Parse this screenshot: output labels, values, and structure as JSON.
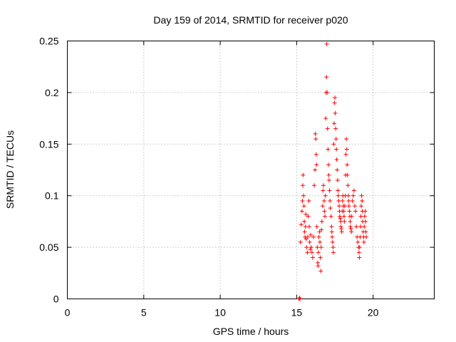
{
  "chart_data": {
    "type": "scatter",
    "title": "Day 159 of 2014, SRMTID for receiver p020",
    "xlabel": "GPS time / hours",
    "ylabel": "SRMTID / TECUs",
    "xlim": [
      0,
      24
    ],
    "ylim": [
      0,
      0.25
    ],
    "xticks": [
      0,
      5,
      10,
      15,
      20
    ],
    "yticks": [
      0,
      0.05,
      0.1,
      0.15,
      0.2,
      0.25
    ],
    "xtick_labels": [
      "0",
      "5",
      "10",
      "15",
      "20"
    ],
    "ytick_labels": [
      "0",
      "0.05",
      "0.1",
      "0.15",
      "0.2",
      "0.25"
    ],
    "grid": true,
    "marker": "+",
    "color": "#ff0000",
    "series": [
      {
        "name": "SRMTID",
        "points": [
          [
            15.15,
            0.0
          ],
          [
            15.2,
            0.001
          ],
          [
            15.22,
            0.0
          ],
          [
            15.25,
            0.055
          ],
          [
            15.3,
            0.072
          ],
          [
            15.35,
            0.085
          ],
          [
            15.38,
            0.095
          ],
          [
            15.4,
            0.11
          ],
          [
            15.42,
            0.12
          ],
          [
            15.45,
            0.1
          ],
          [
            15.48,
            0.09
          ],
          [
            15.5,
            0.075
          ],
          [
            15.52,
            0.065
          ],
          [
            15.55,
            0.06
          ],
          [
            15.58,
            0.07
          ],
          [
            15.6,
            0.082
          ],
          [
            15.62,
            0.058
          ],
          [
            15.65,
            0.05
          ],
          [
            15.7,
            0.045
          ],
          [
            15.72,
            0.06
          ],
          [
            15.75,
            0.08
          ],
          [
            15.8,
            0.095
          ],
          [
            15.82,
            0.07
          ],
          [
            15.85,
            0.055
          ],
          [
            15.9,
            0.048
          ],
          [
            15.92,
            0.062
          ],
          [
            15.95,
            0.05
          ],
          [
            16.0,
            0.045
          ],
          [
            16.05,
            0.04
          ],
          [
            16.1,
            0.06
          ],
          [
            16.15,
            0.11
          ],
          [
            16.2,
            0.125
          ],
          [
            16.22,
            0.16
          ],
          [
            16.25,
            0.155
          ],
          [
            16.28,
            0.14
          ],
          [
            16.3,
            0.13
          ],
          [
            16.32,
            0.07
          ],
          [
            16.35,
            0.05
          ],
          [
            16.38,
            0.035
          ],
          [
            16.4,
            0.032
          ],
          [
            16.42,
            0.045
          ],
          [
            16.45,
            0.06
          ],
          [
            16.5,
            0.065
          ],
          [
            16.52,
            0.055
          ],
          [
            16.55,
            0.04
          ],
          [
            16.58,
            0.027
          ],
          [
            16.6,
            0.05
          ],
          [
            16.62,
            0.067
          ],
          [
            16.65,
            0.075
          ],
          [
            16.7,
            0.09
          ],
          [
            16.72,
            0.105
          ],
          [
            16.75,
            0.11
          ],
          [
            16.8,
            0.095
          ],
          [
            16.82,
            0.085
          ],
          [
            16.85,
            0.08
          ],
          [
            16.88,
            0.1
          ],
          [
            16.9,
            0.175
          ],
          [
            16.92,
            0.2
          ],
          [
            16.95,
            0.215
          ],
          [
            16.97,
            0.247
          ],
          [
            17.0,
            0.2
          ],
          [
            17.02,
            0.165
          ],
          [
            17.05,
            0.145
          ],
          [
            17.08,
            0.13
          ],
          [
            17.1,
            0.12
          ],
          [
            17.12,
            0.115
          ],
          [
            17.15,
            0.105
          ],
          [
            17.18,
            0.095
          ],
          [
            17.2,
            0.088
          ],
          [
            17.25,
            0.08
          ],
          [
            17.28,
            0.07
          ],
          [
            17.3,
            0.065
          ],
          [
            17.32,
            0.06
          ],
          [
            17.35,
            0.055
          ],
          [
            17.38,
            0.05
          ],
          [
            17.4,
            0.045
          ],
          [
            17.42,
            0.15
          ],
          [
            17.45,
            0.17
          ],
          [
            17.48,
            0.19
          ],
          [
            17.5,
            0.195
          ],
          [
            17.52,
            0.18
          ],
          [
            17.55,
            0.165
          ],
          [
            17.58,
            0.155
          ],
          [
            17.6,
            0.145
          ],
          [
            17.62,
            0.135
          ],
          [
            17.65,
            0.125
          ],
          [
            17.68,
            0.115
          ],
          [
            17.7,
            0.105
          ],
          [
            17.72,
            0.1
          ],
          [
            17.75,
            0.095
          ],
          [
            17.78,
            0.09
          ],
          [
            17.8,
            0.085
          ],
          [
            17.82,
            0.08
          ],
          [
            17.85,
            0.078
          ],
          [
            17.88,
            0.075
          ],
          [
            17.9,
            0.07
          ],
          [
            17.92,
            0.068
          ],
          [
            17.95,
            0.065
          ],
          [
            17.98,
            0.085
          ],
          [
            18.0,
            0.095
          ],
          [
            18.02,
            0.1
          ],
          [
            18.05,
            0.09
          ],
          [
            18.08,
            0.085
          ],
          [
            18.1,
            0.08
          ],
          [
            18.12,
            0.075
          ],
          [
            18.15,
            0.09
          ],
          [
            18.18,
            0.1
          ],
          [
            18.2,
            0.12
          ],
          [
            18.22,
            0.14
          ],
          [
            18.25,
            0.155
          ],
          [
            18.28,
            0.145
          ],
          [
            18.3,
            0.13
          ],
          [
            18.32,
            0.12
          ],
          [
            18.35,
            0.11
          ],
          [
            18.38,
            0.1
          ],
          [
            18.4,
            0.095
          ],
          [
            18.42,
            0.09
          ],
          [
            18.45,
            0.085
          ],
          [
            18.48,
            0.08
          ],
          [
            18.5,
            0.075
          ],
          [
            18.52,
            0.07
          ],
          [
            18.55,
            0.068
          ],
          [
            18.58,
            0.065
          ],
          [
            18.6,
            0.08
          ],
          [
            18.65,
            0.095
          ],
          [
            18.7,
            0.1
          ],
          [
            18.75,
            0.105
          ],
          [
            18.8,
            0.09
          ],
          [
            18.85,
            0.085
          ],
          [
            18.9,
            0.07
          ],
          [
            18.95,
            0.06
          ],
          [
            19.0,
            0.055
          ],
          [
            19.05,
            0.05
          ],
          [
            19.08,
            0.045
          ],
          [
            19.1,
            0.04
          ],
          [
            19.12,
            0.05
          ],
          [
            19.15,
            0.06
          ],
          [
            19.18,
            0.07
          ],
          [
            19.2,
            0.08
          ],
          [
            19.22,
            0.09
          ],
          [
            19.25,
            0.1
          ],
          [
            19.28,
            0.095
          ],
          [
            19.3,
            0.085
          ],
          [
            19.32,
            0.075
          ],
          [
            19.35,
            0.065
          ],
          [
            19.38,
            0.06
          ],
          [
            19.4,
            0.055
          ],
          [
            19.42,
            0.07
          ],
          [
            19.45,
            0.08
          ],
          [
            19.48,
            0.085
          ],
          [
            19.5,
            0.075
          ],
          [
            19.52,
            0.065
          ],
          [
            19.55,
            0.06
          ]
        ]
      }
    ]
  }
}
